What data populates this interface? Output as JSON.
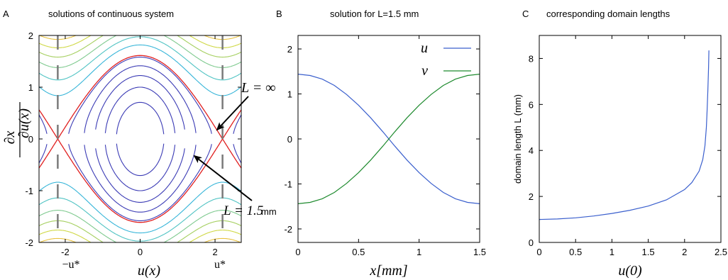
{
  "chart_data": [
    {
      "panel_label": "A",
      "type": "line",
      "title": "solutions of continuous system",
      "xlabel": "u(x)",
      "ylabel": "∂u(x)/∂x",
      "xlim": [
        -2.7,
        2.7
      ],
      "ylim": [
        -2,
        2
      ],
      "xticks": [
        "-2",
        "0",
        "2"
      ],
      "yticks": [
        "-2",
        "-1",
        "0",
        "1",
        "2"
      ],
      "special_ticks": [
        {
          "label": "−u*",
          "x": -2.2
        },
        {
          "label": "u*",
          "x": 2.2
        }
      ],
      "u_star": 2.2,
      "contour_energy_levels": [
        0.5,
        1.0,
        1.5,
        2.0,
        2.5,
        3.3,
        3.9,
        4.5,
        5.1,
        5.7,
        6.3,
        6.9,
        7.5,
        8.1
      ],
      "closed_orbit_color": "#3b3bb5",
      "open_orbit_colors": [
        "#39b6d9",
        "#4fc3c3",
        "#7fca8f",
        "#a5cf5f",
        "#cfd845",
        "#e8c13d",
        "#efa33a",
        "#ee7d33",
        "#e85a2d",
        "#de3a2a",
        "#d02a2a",
        "#c01f2a"
      ],
      "separatrix_color": "#e02020",
      "annotations": [
        {
          "text": "L = ∞",
          "arrow_to": [
            2.4,
            0.15
          ]
        },
        {
          "text": "L = 1.5",
          "unit": "mm",
          "arrow_to": [
            1.5,
            -0.35
          ]
        }
      ]
    },
    {
      "panel_label": "B",
      "type": "line",
      "title": "solution for L=1.5 mm",
      "xlabel": "x[mm]",
      "ylabel": "",
      "xlim": [
        0,
        1.5
      ],
      "ylim": [
        -2.3,
        2.3
      ],
      "xticks": [
        "0",
        "0.5",
        "1",
        "1.5"
      ],
      "yticks": [
        "-2",
        "-1",
        "0",
        "1",
        "2"
      ],
      "legend_position": "top-right",
      "series": [
        {
          "name": "u",
          "color": "#3a5fcd",
          "x": [
            0,
            0.1,
            0.2,
            0.3,
            0.4,
            0.5,
            0.6,
            0.7,
            0.75,
            0.8,
            0.9,
            1.0,
            1.1,
            1.2,
            1.3,
            1.4,
            1.5
          ],
          "y": [
            1.44,
            1.41,
            1.33,
            1.19,
            0.99,
            0.75,
            0.47,
            0.16,
            0.0,
            -0.16,
            -0.47,
            -0.75,
            -0.99,
            -1.19,
            -1.33,
            -1.41,
            -1.44
          ]
        },
        {
          "name": "v",
          "color": "#1e8a2e",
          "x": [
            0,
            0.1,
            0.2,
            0.3,
            0.4,
            0.5,
            0.6,
            0.7,
            0.75,
            0.8,
            0.9,
            1.0,
            1.1,
            1.2,
            1.3,
            1.4,
            1.5
          ],
          "y": [
            -1.44,
            -1.41,
            -1.33,
            -1.19,
            -0.99,
            -0.75,
            -0.47,
            -0.16,
            0.0,
            0.16,
            0.47,
            0.75,
            0.99,
            1.19,
            1.33,
            1.41,
            1.44
          ]
        }
      ]
    },
    {
      "panel_label": "C",
      "type": "line",
      "title": "corresponding domain lengths",
      "xlabel": "u(0)",
      "ylabel": "domain length L (mm)",
      "xlim": [
        0,
        2.5
      ],
      "ylim": [
        0,
        9
      ],
      "xticks": [
        "0",
        "0.5",
        "1",
        "1.5",
        "2",
        "2.5"
      ],
      "yticks": [
        "0",
        "2",
        "4",
        "6",
        "8"
      ],
      "series": [
        {
          "name": "",
          "color": "#3a5fcd",
          "x": [
            0,
            0.25,
            0.5,
            0.75,
            1.0,
            1.25,
            1.5,
            1.75,
            2.0,
            2.1,
            2.2,
            2.25,
            2.28,
            2.3,
            2.31,
            2.32,
            2.33,
            2.335
          ],
          "y": [
            1.0,
            1.02,
            1.07,
            1.15,
            1.26,
            1.4,
            1.58,
            1.85,
            2.3,
            2.6,
            3.1,
            3.6,
            4.2,
            5.0,
            5.7,
            6.6,
            7.6,
            8.35
          ]
        }
      ]
    }
  ]
}
